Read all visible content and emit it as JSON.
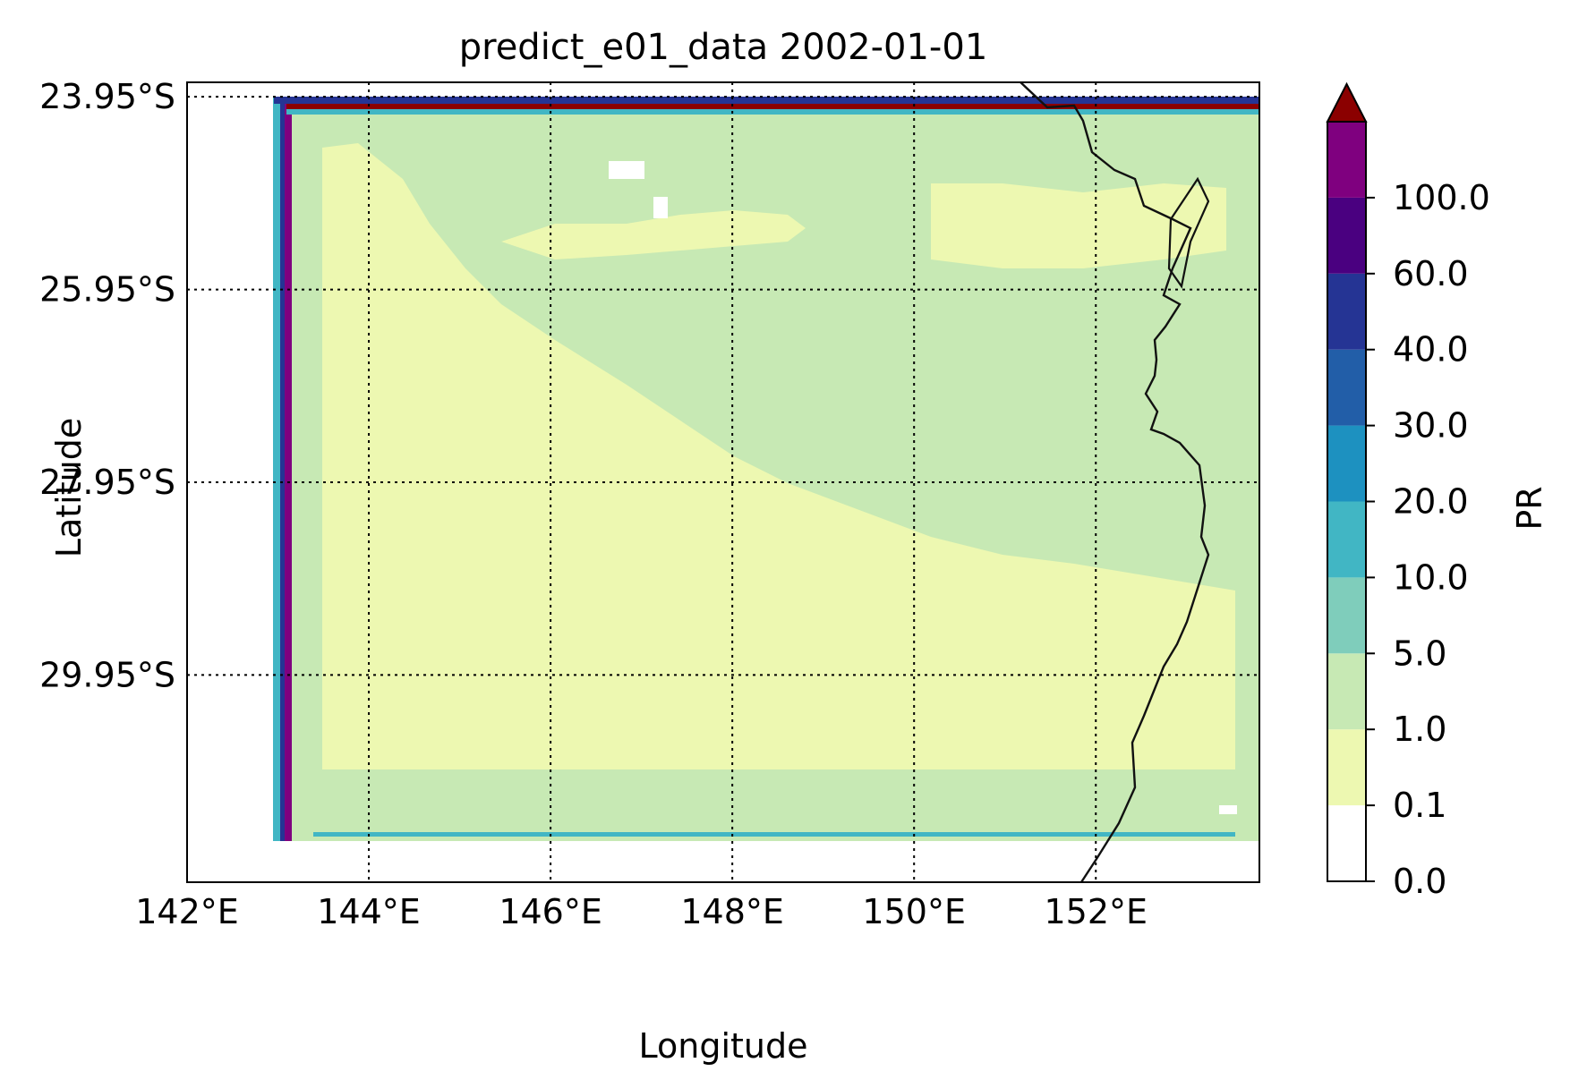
{
  "title": "predict_e01_data 2002-01-01",
  "xlabel": "Longitude",
  "ylabel": "Latitude",
  "x_ticks": [
    {
      "value": 142,
      "label": "142°E"
    },
    {
      "value": 144,
      "label": "144°E"
    },
    {
      "value": 146,
      "label": "146°E"
    },
    {
      "value": 148,
      "label": "148°E"
    },
    {
      "value": 150,
      "label": "150°E"
    },
    {
      "value": 152,
      "label": "152°E"
    }
  ],
  "y_ticks": [
    {
      "value": -23.95,
      "label": "23.95°S"
    },
    {
      "value": -25.95,
      "label": "25.95°S"
    },
    {
      "value": -27.95,
      "label": "27.95°S"
    },
    {
      "value": -29.95,
      "label": "29.95°S"
    }
  ],
  "extent": {
    "lon": [
      142.0,
      153.8
    ],
    "lat": [
      -32.1,
      -23.8
    ]
  },
  "colorbar": {
    "label": "PR",
    "extend": "max",
    "levels": [
      "0.0",
      "0.1",
      "1.0",
      "5.0",
      "10.0",
      "20.0",
      "30.0",
      "40.0",
      "60.0",
      "100.0"
    ],
    "colors": [
      "#ffffff",
      "#edf8b1",
      "#c7e9b4",
      "#7fcdbb",
      "#41b6c4",
      "#1d91c0",
      "#225ea8",
      "#253494",
      "#4a0080",
      "#7f007f"
    ],
    "over_color": "#8b0000"
  },
  "gridlines": "dotted",
  "map_features": [
    "coastline"
  ],
  "fields": {
    "data_lon_range": [
      143.0,
      153.6
    ],
    "data_lat_range": [
      -31.5,
      -24.0
    ],
    "dominant_low_value_band": "0.1-1.0",
    "secondary_band": "1.0-5.0",
    "edge_artifacts": "high values (30.0 to >100.0) along western and northern boundary"
  }
}
